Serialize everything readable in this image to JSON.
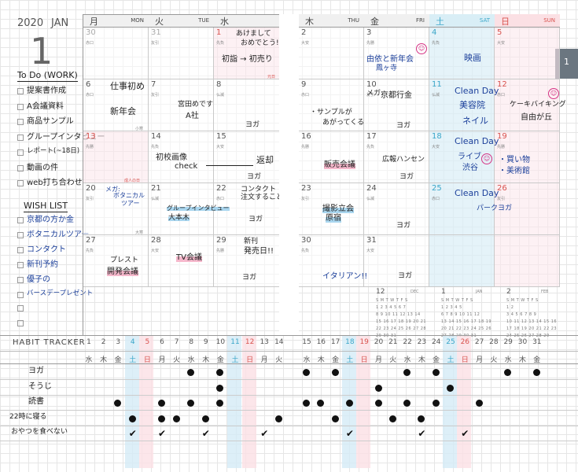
{
  "header": {
    "year": "2020",
    "month_name": "JAN",
    "month_number": "1",
    "page_tab": "1"
  },
  "weekdays": [
    {
      "jp": "月",
      "en": "MON"
    },
    {
      "jp": "火",
      "en": "TUE"
    },
    {
      "jp": "水",
      "en": "WED"
    },
    {
      "jp": "木",
      "en": "THU"
    },
    {
      "jp": "金",
      "en": "FRI"
    },
    {
      "jp": "土",
      "en": "SAT"
    },
    {
      "jp": "日",
      "en": "SUN"
    }
  ],
  "rokuyo": {
    "sensho": "先勝",
    "tomobiki": "友引",
    "senbu": "先負",
    "butsumetsu": "仏滅",
    "taian": "大安",
    "shakko": "赤口"
  },
  "holidays": {
    "jan1": "元日",
    "jan13": "成人の日",
    "jan6": "小寒",
    "jan20": "大寒"
  },
  "todo": {
    "title": "To Do (WORK)",
    "items": [
      "提案書作成",
      "A会議資料",
      "商品サンプル",
      "グループインタビュー",
      "レポート(~18日)",
      "動画の件",
      "web打ち合わせ"
    ]
  },
  "wish": {
    "title": "WISH LIST",
    "items": [
      "京都の方か金",
      "ボタニカルツアー",
      "コンタクト",
      "新刊予約",
      "優子の",
      "バースデープレゼント"
    ]
  },
  "notes": {
    "d1": "あけまして",
    "d1b": "おめでとう!!",
    "d1c": "初詣 → 初売り",
    "d3": "由依と新年会",
    "d3b": "鳳ヶ寺",
    "d4": "映画",
    "d6": "仕事初め",
    "d6b": "新年会",
    "d7": "宮田めです",
    "d7b": "A社",
    "d8": "ヨガ",
    "d9": "・サンプルが",
    "d9b": "あがってくる",
    "d10": "メガ:",
    "d10b": "京都行金",
    "d10c": "ヨガ",
    "d11": "Clean Day",
    "d11b": "美容院",
    "d11c": "ネイル",
    "d12": "ケーキバイキング",
    "d12b": "自由が丘",
    "d14": "初校画像",
    "d14b": "check",
    "d15": "返却",
    "d15b": "ヨガ",
    "d16": "販売会議",
    "d17": "広報ハンセン",
    "d17b": "ヨガ",
    "d18": "Clean Day",
    "d18b": "ライブ",
    "d18c": "渋谷",
    "d19": "・買い物",
    "d19b": "・美術館",
    "d20": "メガ:",
    "d20b": "ボタニカル",
    "d20c": "ツアー",
    "d21": "グループインタビュー",
    "d21b": "大本木",
    "d22": "コンタクト",
    "d22b": "注文すること!",
    "d22c": "ヨガ",
    "d23": "撮影立会",
    "d23b": "原宿",
    "d24": "ヨガ",
    "d25": "Clean Day",
    "d25b": "パークヨガ",
    "d28": "プレスト",
    "d28b": "開発会議",
    "d28c": "TV会議",
    "d29": "新刊",
    "d29b": "発売日!!",
    "d29c": "ヨガ",
    "d30": "イタリアン!!",
    "d31": "ヨガ"
  },
  "habit": {
    "title": "HABIT TRACKER",
    "days": [
      "1",
      "2",
      "3",
      "4",
      "5",
      "6",
      "7",
      "8",
      "9",
      "10",
      "11",
      "12",
      "13",
      "14",
      "15",
      "16",
      "17",
      "18",
      "19",
      "20",
      "21",
      "22",
      "23",
      "24",
      "25",
      "26",
      "27",
      "28",
      "29",
      "30",
      "31"
    ],
    "dows": [
      "水",
      "木",
      "金",
      "土",
      "日",
      "月",
      "火",
      "水",
      "木",
      "金",
      "土",
      "日",
      "月",
      "火",
      "水",
      "木",
      "金",
      "土",
      "日",
      "月",
      "火",
      "水",
      "木",
      "金",
      "土",
      "日",
      "月",
      "火",
      "水",
      "木",
      "金"
    ],
    "rows": [
      {
        "name": "ヨガ",
        "marks": [
          8,
          10,
          15,
          17,
          22,
          24,
          29,
          31
        ],
        "type": "dot"
      },
      {
        "name": "そうじ",
        "marks": [
          10,
          20,
          25
        ],
        "type": "dot"
      },
      {
        "name": "読書",
        "marks": [
          3,
          6,
          8,
          10,
          15,
          16,
          18,
          20,
          22,
          24,
          27
        ],
        "type": "dot"
      },
      {
        "name": "22時に寝る",
        "marks": [
          4,
          6,
          7,
          9,
          14,
          17,
          21,
          23
        ],
        "type": "dot"
      },
      {
        "name": "おやつを食べない",
        "marks": [
          4,
          6,
          9,
          13,
          18,
          23,
          26
        ],
        "type": "check"
      }
    ]
  },
  "mini_calendars": [
    {
      "month": "12",
      "en": "DEC",
      "wd": "S M T W T F S",
      "rows": [
        "1 2 3 4 5 6 7",
        "8 9 10 11 12 13 14",
        "15 16 17 18 19 20 21",
        "22 23 24 25 26 27 28",
        "29 30 31"
      ]
    },
    {
      "month": "1",
      "en": "JAN",
      "wd": "S M T W T F S",
      "rows": [
        "1 2 3 4 5",
        "6 7 8 9 10 11 12",
        "13 14 15 16 17 18 19",
        "20 21 22 23 24 25 26",
        "27 28 29 30 31"
      ]
    },
    {
      "month": "2",
      "en": "FEB",
      "wd": "S M T W T F S",
      "rows": [
        "1 2",
        "3 4 5 6 7 8 9",
        "10 11 12 13 14 15 16",
        "17 18 19 20 21 22 23",
        "24 25 26 27 28 29"
      ]
    }
  ]
}
